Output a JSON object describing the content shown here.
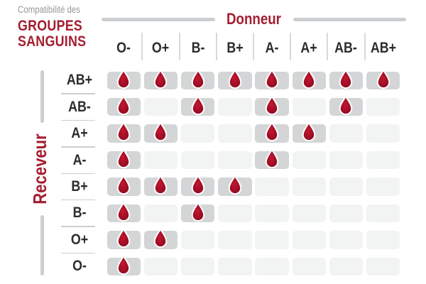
{
  "title": {
    "kicker": "Compatibilité des",
    "line2": "GROUPES",
    "line3": "SANGUINS"
  },
  "axes": {
    "donor": "Donneur",
    "recipient": "Receveur"
  },
  "colors": {
    "accent_red": "#A41E30",
    "drop_red_center": "#C2182F",
    "drop_red_edge": "#8C0B20",
    "filled_cell_gray": "#D3D5D6",
    "empty_cell_gray": "#F2F3F3",
    "axis_bar_gray": "#CCCFD1",
    "label_dark": "#2D2D2E",
    "kicker_gray": "#97979A"
  },
  "chart_data": {
    "type": "heatmap",
    "title": "Compatibilité des GROUPES SANGUINS",
    "x_axis": {
      "label": "Donneur",
      "categories": [
        "O-",
        "O+",
        "B-",
        "B+",
        "A-",
        "A+",
        "AB-",
        "AB+"
      ]
    },
    "y_axis": {
      "label": "Receveur",
      "categories": [
        "AB+",
        "AB-",
        "A+",
        "A-",
        "B+",
        "B-",
        "O+",
        "O-"
      ]
    },
    "compatible_matrix": [
      [
        1,
        1,
        1,
        1,
        1,
        1,
        1,
        1
      ],
      [
        1,
        0,
        1,
        0,
        1,
        0,
        1,
        0
      ],
      [
        1,
        1,
        0,
        0,
        1,
        1,
        0,
        0
      ],
      [
        1,
        0,
        0,
        0,
        1,
        0,
        0,
        0
      ],
      [
        1,
        1,
        1,
        1,
        0,
        0,
        0,
        0
      ],
      [
        1,
        0,
        1,
        0,
        0,
        0,
        0,
        0
      ],
      [
        1,
        1,
        0,
        0,
        0,
        0,
        0,
        0
      ],
      [
        1,
        0,
        0,
        0,
        0,
        0,
        0,
        0
      ]
    ],
    "compatible_marker": "blood-drop-icon"
  }
}
